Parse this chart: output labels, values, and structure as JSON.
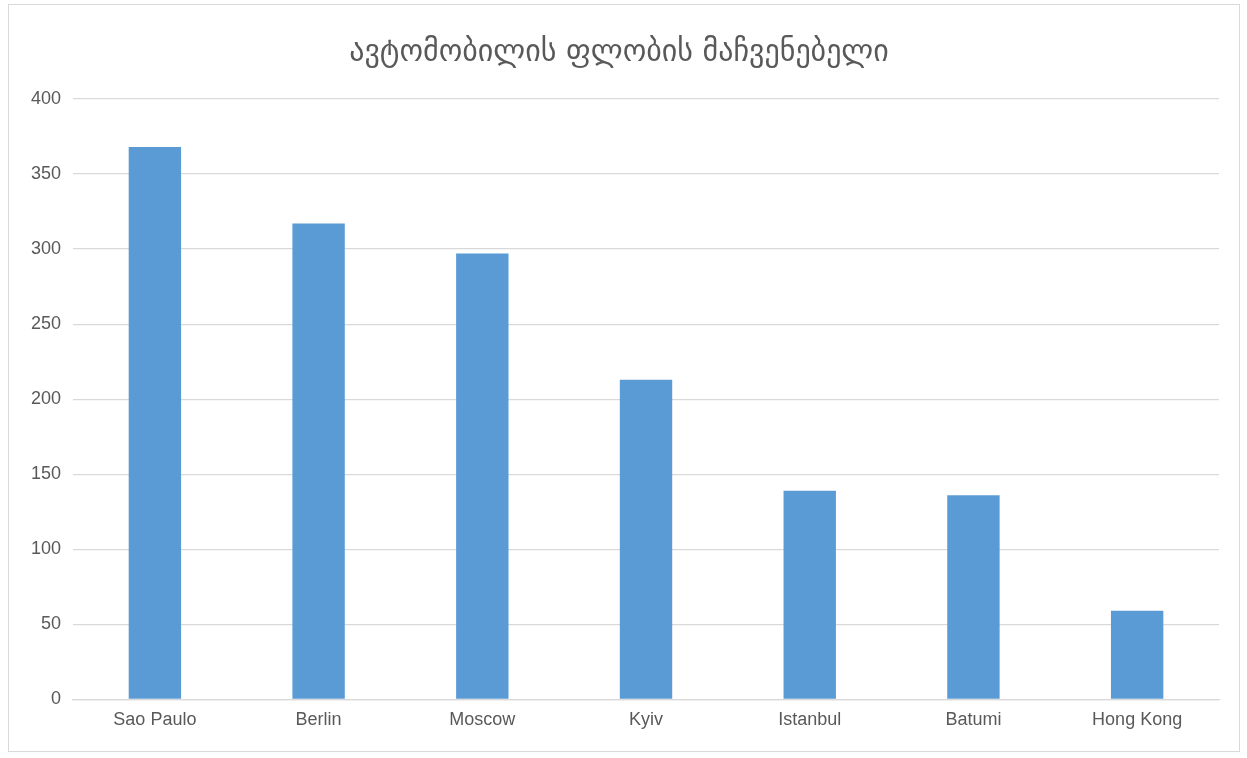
{
  "chart_data": {
    "type": "bar",
    "title": "ავტომობილის ფლობის მაჩვენებელი",
    "categories": [
      "Sao Paulo",
      "Berlin",
      "Moscow",
      "Kyiv",
      "Istanbul",
      "Batumi",
      "Hong Kong"
    ],
    "values": [
      368,
      317,
      297,
      213,
      139,
      136,
      59
    ],
    "color": "#5b9bd5",
    "ylim": [
      0,
      400
    ],
    "yticks": [
      0,
      50,
      100,
      150,
      200,
      250,
      300,
      350,
      400
    ],
    "grid": "y",
    "legend": false
  }
}
